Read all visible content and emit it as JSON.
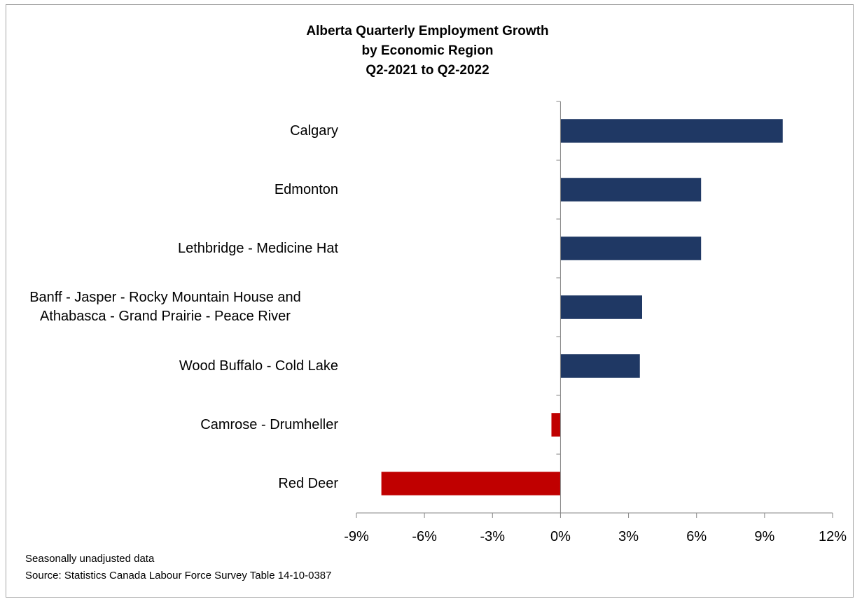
{
  "chart_data": {
    "type": "bar",
    "orientation": "horizontal",
    "title": [
      "Alberta Quarterly Employment Growth",
      "by Economic Region",
      "Q2-2021 to Q2-2022"
    ],
    "categories": [
      [
        "Calgary"
      ],
      [
        "Edmonton"
      ],
      [
        "Lethbridge - Medicine Hat"
      ],
      [
        "Banff - Jasper - Rocky Mountain House and",
        "Athabasca - Grand Prairie - Peace River"
      ],
      [
        "Wood Buffalo - Cold Lake"
      ],
      [
        "Camrose - Drumheller"
      ],
      [
        "Red Deer"
      ]
    ],
    "values": [
      9.8,
      6.2,
      6.2,
      3.6,
      3.5,
      -0.4,
      -7.9
    ],
    "xlim": [
      -9,
      12
    ],
    "x_ticks": [
      -9,
      -6,
      -3,
      0,
      3,
      6,
      9,
      12
    ],
    "x_tick_labels": [
      "-9%",
      "-6%",
      "-3%",
      "0%",
      "3%",
      "6%",
      "9%",
      "12%"
    ],
    "colors": {
      "positive": "#1f3864",
      "negative": "#c00000",
      "axis": "#868686"
    },
    "grid": false,
    "legend": "none"
  },
  "notes": [
    "Seasonally unadjusted data",
    "Source: Statistics Canada Labour Force Survey Table 14-10-0387"
  ]
}
